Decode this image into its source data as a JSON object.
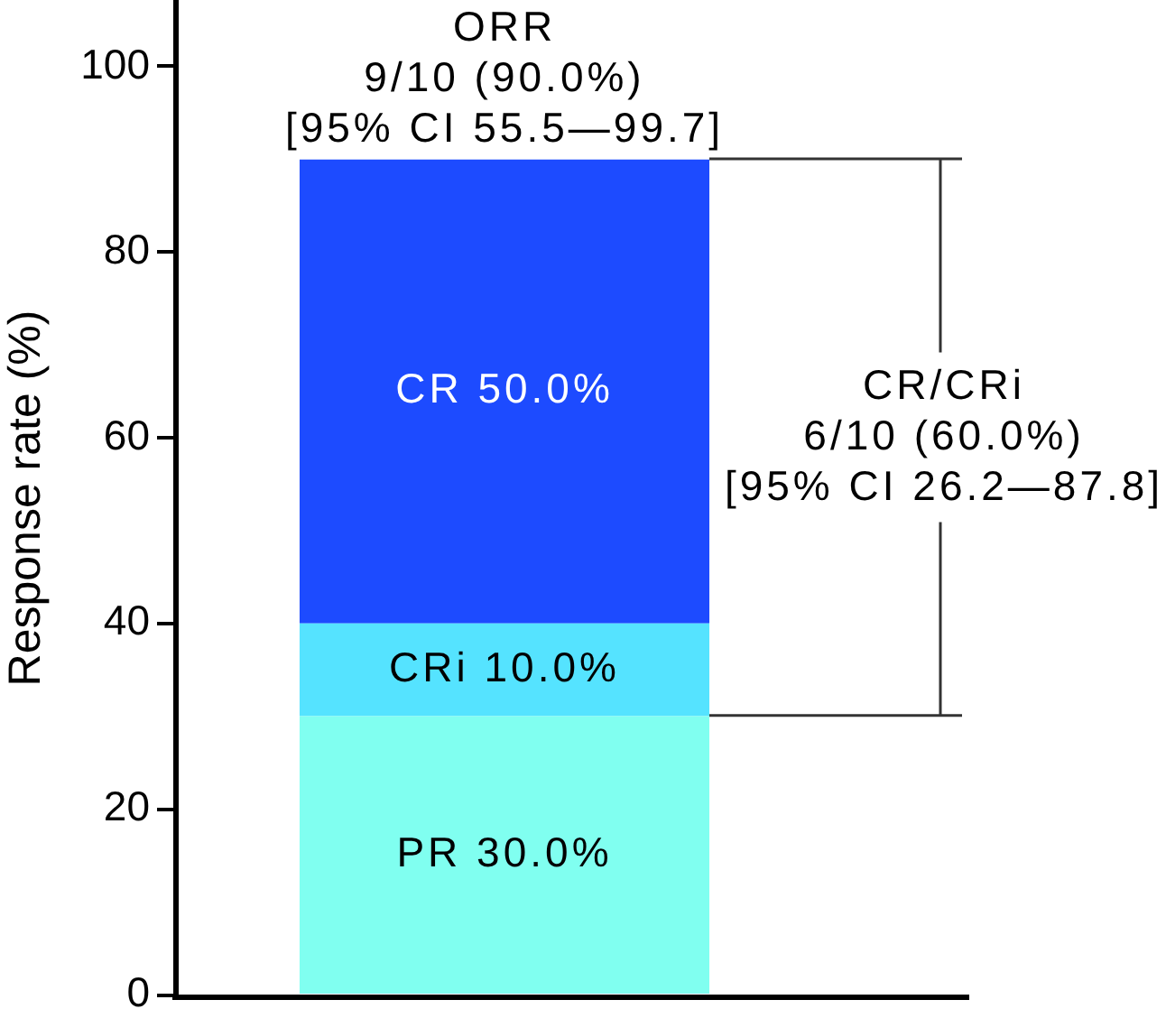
{
  "chart_data": {
    "type": "bar",
    "stacked": true,
    "categories": [
      null
    ],
    "series": [
      {
        "color": "#80fff0",
        "values": [
          30
        ],
        "value_labels": [
          "PR 30.0%"
        ]
      },
      {
        "color": "#55e3ff",
        "values": [
          10
        ],
        "value_labels": [
          "CRi 10.0%"
        ]
      },
      {
        "color": "#1d4bff",
        "values": [
          50
        ],
        "value_labels": [
          "CR 50.0%"
        ]
      }
    ],
    "ylabel": "Response rate (%)",
    "ylim": [
      0,
      107
    ],
    "yticks": [
      0,
      20,
      40,
      60,
      80,
      100
    ],
    "tick_labels": "y",
    "grid": false,
    "legend": false,
    "annotations": [
      {
        "text": "ORR\n9/10 (90.0%)\n[95% CI 55.5—99.7]",
        "y": 90
      },
      "CR/CRi\n6/10 (60.0%)\n[95% CI 26.2—87.8]"
    ]
  }
}
